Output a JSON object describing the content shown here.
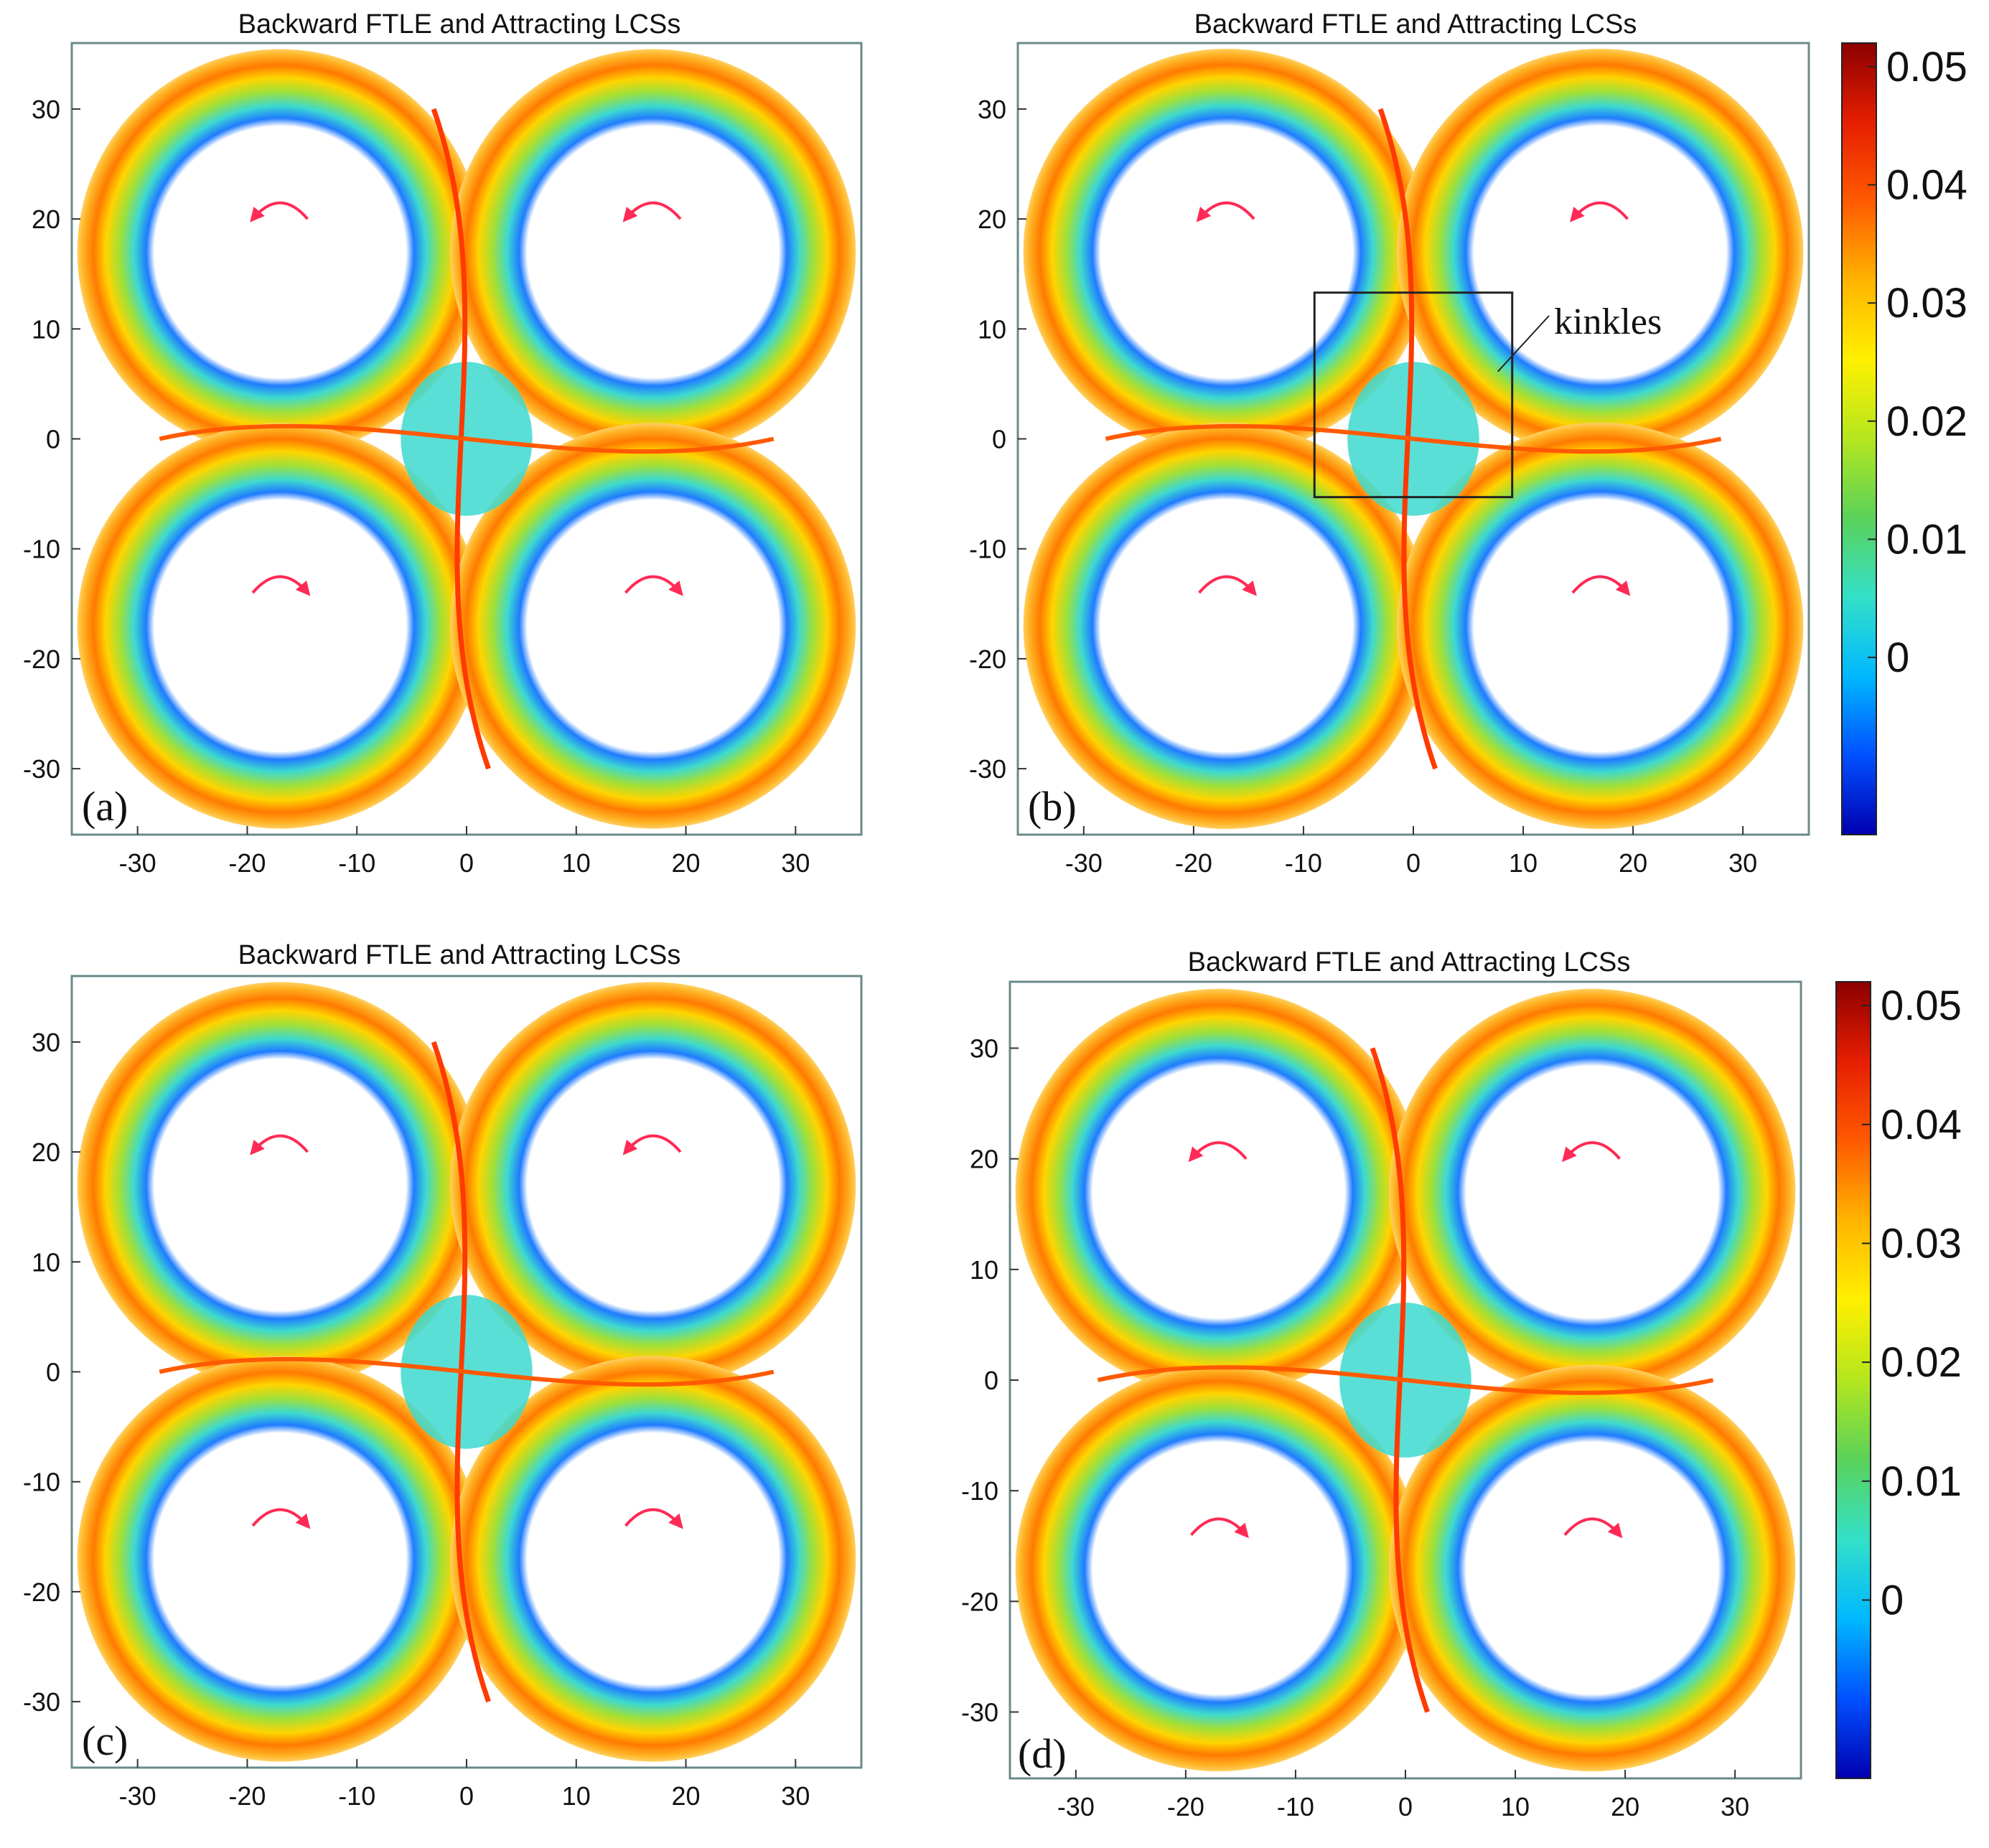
{
  "chart_data": [
    {
      "type": "heatmap",
      "panel_label": "(a)",
      "title": "Backward FTLE and Attracting LCSs",
      "xlim": [
        -36,
        36
      ],
      "ylim": [
        -36,
        36
      ],
      "xticks": [
        -30,
        -20,
        -10,
        0,
        10,
        20,
        30
      ],
      "yticks": [
        30,
        20,
        10,
        0,
        -10,
        -20,
        -30
      ],
      "rotation_arrows": [
        "counterclockwise",
        "counterclockwise",
        "clockwise",
        "clockwise"
      ],
      "annotation": null
    },
    {
      "type": "heatmap",
      "panel_label": "(b)",
      "title": "Backward FTLE and Attracting LCSs",
      "xlim": [
        -36,
        36
      ],
      "ylim": [
        -36,
        36
      ],
      "xticks": [
        -30,
        -20,
        -10,
        0,
        10,
        20,
        30
      ],
      "yticks": [
        30,
        20,
        10,
        0,
        -10,
        -20,
        -30
      ],
      "rotation_arrows": [
        "counterclockwise",
        "counterclockwise",
        "clockwise",
        "clockwise"
      ],
      "annotation": {
        "text": "kinkles",
        "box_x": [
          -9,
          9
        ],
        "box_y": [
          -5.3,
          13.3
        ]
      }
    },
    {
      "type": "heatmap",
      "panel_label": "(c)",
      "title": "Backward FTLE and Attracting LCSs",
      "xlim": [
        -36,
        36
      ],
      "ylim": [
        -36,
        36
      ],
      "xticks": [
        -30,
        -20,
        -10,
        0,
        10,
        20,
        30
      ],
      "yticks": [
        30,
        20,
        10,
        0,
        -10,
        -20,
        -30
      ],
      "rotation_arrows": [
        "counterclockwise",
        "counterclockwise",
        "clockwise",
        "clockwise"
      ],
      "annotation": null
    },
    {
      "type": "heatmap",
      "panel_label": "(d)",
      "title": "Backward FTLE and Attracting LCSs",
      "xlim": [
        -36,
        36
      ],
      "ylim": [
        -36,
        36
      ],
      "xticks": [
        -30,
        -20,
        -10,
        0,
        10,
        20,
        30
      ],
      "yticks": [
        30,
        20,
        10,
        0,
        -10,
        -20,
        -30
      ],
      "rotation_arrows": [
        "counterclockwise",
        "counterclockwise",
        "clockwise",
        "clockwise"
      ],
      "annotation": null
    }
  ],
  "colorbar": {
    "range": [
      -0.015,
      0.052
    ],
    "ticks": [
      0.05,
      0.04,
      0.03,
      0.02,
      0.01,
      0
    ],
    "tick_labels": [
      "0.05",
      "0.04",
      "0.03",
      "0.02",
      "0.01",
      "0"
    ],
    "colormap": [
      "#0000b0",
      "#0050ff",
      "#00b8ff",
      "#33e0c8",
      "#5ad25a",
      "#b4e61e",
      "#fff000",
      "#ffb400",
      "#ff5a00",
      "#e61e00",
      "#8c0000"
    ]
  }
}
